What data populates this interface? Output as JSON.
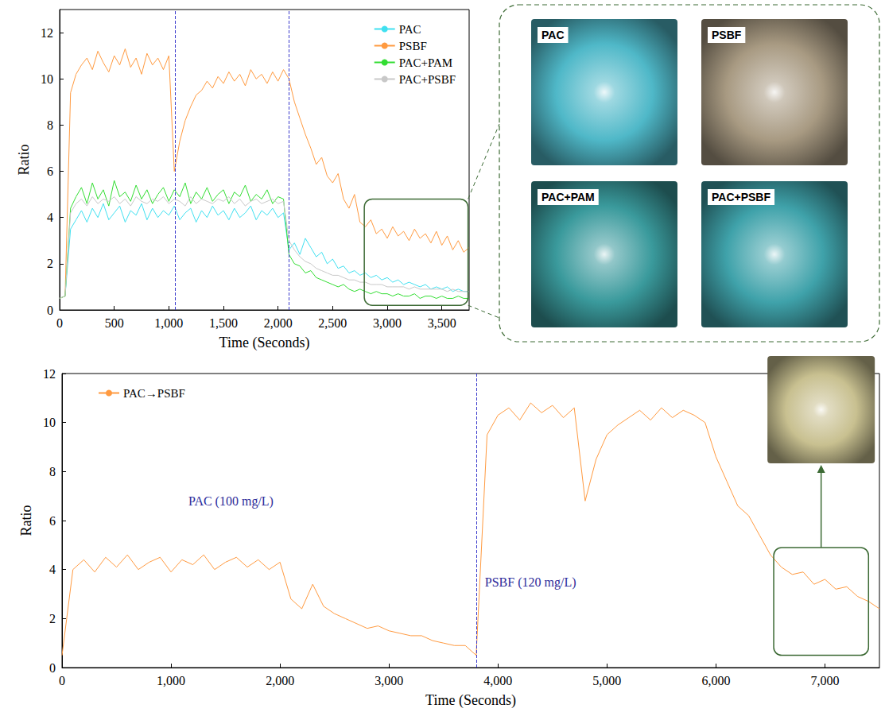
{
  "chart_data": [
    {
      "type": "line",
      "x_label": "Time (Seconds)",
      "y_label": "Ratio",
      "xlim": [
        0,
        3750
      ],
      "xticks": [
        0,
        500,
        1000,
        1500,
        2000,
        2500,
        3000,
        3500
      ],
      "ylim": [
        0,
        13
      ],
      "yticks": [
        0,
        2,
        4,
        6,
        8,
        10,
        12
      ],
      "grid": false,
      "legend": "upper right",
      "vlines": [
        1060,
        2100
      ],
      "highlight": {
        "x": [
          2790,
          3740
        ],
        "y": [
          0.2,
          4.8
        ]
      },
      "x": [
        0,
        50,
        100,
        150,
        200,
        250,
        300,
        350,
        400,
        450,
        500,
        550,
        600,
        650,
        700,
        750,
        800,
        850,
        900,
        950,
        1000,
        1050,
        1100,
        1150,
        1200,
        1250,
        1300,
        1350,
        1400,
        1450,
        1500,
        1550,
        1600,
        1650,
        1700,
        1750,
        1800,
        1850,
        1900,
        1950,
        2000,
        2050,
        2100,
        2150,
        2200,
        2250,
        2300,
        2350,
        2400,
        2450,
        2500,
        2550,
        2600,
        2650,
        2700,
        2750,
        2800,
        2850,
        2900,
        2950,
        3000,
        3050,
        3100,
        3150,
        3200,
        3250,
        3300,
        3350,
        3400,
        3450,
        3500,
        3550,
        3600,
        3650,
        3700,
        3750
      ],
      "series": [
        {
          "name": "PAC",
          "color": "#40e0f0",
          "values": [
            0.5,
            0.6,
            3.5,
            3.9,
            4.3,
            3.8,
            4.4,
            4.0,
            4.6,
            3.9,
            4.2,
            4.5,
            3.8,
            4.3,
            4.1,
            4.6,
            3.9,
            4.4,
            4.0,
            4.3,
            4.1,
            4.5,
            3.9,
            4.2,
            4.4,
            3.8,
            4.3,
            4.0,
            4.5,
            4.1,
            4.3,
            3.9,
            4.4,
            4.0,
            4.2,
            4.5,
            3.9,
            4.3,
            4.1,
            4.4,
            4.0,
            4.2,
            2.6,
            2.9,
            2.4,
            3.1,
            2.7,
            2.3,
            2.5,
            2.0,
            2.2,
            1.8,
            1.9,
            1.6,
            1.7,
            1.5,
            1.6,
            1.4,
            1.5,
            1.3,
            1.4,
            1.2,
            1.3,
            1.1,
            1.2,
            1.1,
            1.0,
            1.1,
            0.9,
            1.0,
            0.9,
            1.0,
            0.8,
            0.9,
            0.8,
            0.8
          ]
        },
        {
          "name": "PSBF",
          "color": "#ff9a40",
          "values": [
            0.5,
            0.6,
            9.4,
            10.2,
            10.6,
            10.9,
            10.4,
            11.2,
            10.7,
            10.3,
            11.0,
            10.6,
            11.3,
            10.5,
            10.9,
            10.2,
            11.1,
            10.6,
            10.9,
            10.4,
            11.0,
            6.0,
            7.3,
            8.2,
            8.8,
            9.3,
            9.5,
            9.9,
            9.6,
            10.1,
            9.8,
            10.3,
            9.9,
            10.2,
            9.7,
            10.4,
            10.0,
            10.2,
            9.8,
            10.3,
            9.9,
            10.4,
            10.0,
            9.0,
            8.3,
            7.6,
            7.0,
            6.3,
            6.6,
            5.8,
            5.5,
            5.9,
            4.8,
            4.4,
            5.0,
            3.8,
            3.6,
            3.9,
            3.3,
            3.5,
            3.1,
            3.6,
            3.2,
            3.4,
            3.0,
            3.5,
            3.1,
            3.3,
            2.9,
            3.4,
            2.8,
            3.2,
            2.6,
            3.0,
            2.5,
            2.7
          ]
        },
        {
          "name": "PAC+PAM",
          "color": "#33dd33",
          "values": [
            0.5,
            0.6,
            4.4,
            4.9,
            5.3,
            4.6,
            5.5,
            4.8,
            5.2,
            4.5,
            5.6,
            4.9,
            5.1,
            4.7,
            5.4,
            4.8,
            5.2,
            4.6,
            5.0,
            5.3,
            4.7,
            5.2,
            4.9,
            5.5,
            4.6,
            5.1,
            4.8,
            5.3,
            4.7,
            5.0,
            5.2,
            4.6,
            5.1,
            4.9,
            5.4,
            4.7,
            5.0,
            4.8,
            5.2,
            4.6,
            4.9,
            4.8,
            2.4,
            2.0,
            1.9,
            1.6,
            1.7,
            1.4,
            1.3,
            1.2,
            1.1,
            1.0,
            1.1,
            0.9,
            0.8,
            0.9,
            0.8,
            0.7,
            0.8,
            0.7,
            0.7,
            0.6,
            0.7,
            0.6,
            0.6,
            0.7,
            0.5,
            0.6,
            0.6,
            0.5,
            0.6,
            0.5,
            0.5,
            0.6,
            0.5,
            0.5
          ]
        },
        {
          "name": "PAC+PSBF",
          "color": "#c8c8c8",
          "values": [
            0.5,
            0.6,
            4.2,
            4.6,
            4.8,
            4.5,
            4.9,
            4.6,
            4.8,
            4.7,
            4.9,
            4.6,
            4.8,
            4.5,
            4.9,
            4.7,
            4.6,
            4.8,
            4.7,
            4.9,
            4.6,
            4.8,
            4.7,
            4.5,
            4.9,
            4.6,
            4.8,
            4.7,
            4.6,
            4.8,
            4.7,
            4.9,
            4.6,
            4.8,
            4.5,
            4.7,
            4.8,
            4.6,
            4.7,
            4.8,
            4.6,
            4.7,
            3.0,
            2.6,
            2.3,
            2.1,
            2.0,
            1.8,
            1.7,
            1.6,
            1.5,
            1.5,
            1.4,
            1.3,
            1.3,
            1.2,
            1.2,
            1.1,
            1.1,
            1.1,
            1.0,
            1.0,
            1.0,
            1.0,
            0.9,
            1.0,
            0.9,
            0.9,
            0.9,
            0.9,
            0.9,
            0.8,
            0.9,
            0.8,
            0.8,
            0.8
          ]
        }
      ]
    },
    {
      "type": "line",
      "x_label": "Time (Seconds)",
      "y_label": "Ratio",
      "xlim": [
        0,
        7500
      ],
      "xticks": [
        0,
        1000,
        2000,
        3000,
        4000,
        5000,
        6000,
        7000
      ],
      "ylim": [
        0,
        12
      ],
      "yticks": [
        0,
        2,
        4,
        6,
        8,
        10,
        12
      ],
      "grid": false,
      "legend": "upper left",
      "vlines": [
        3800
      ],
      "annotations": [
        {
          "text": "PAC (100 mg/L)",
          "x": 1550,
          "y": 6.8
        },
        {
          "text": "PSBF (120 mg/L)",
          "x": 3880,
          "y": 3.5
        }
      ],
      "highlight": {
        "x": [
          6530,
          7400
        ],
        "y": [
          0.5,
          4.9
        ]
      },
      "inset": {
        "color": "#c8c090"
      },
      "x": [
        0,
        100,
        200,
        300,
        400,
        500,
        600,
        700,
        800,
        900,
        1000,
        1100,
        1200,
        1300,
        1400,
        1500,
        1600,
        1700,
        1800,
        1900,
        2000,
        2100,
        2200,
        2300,
        2400,
        2500,
        2600,
        2700,
        2800,
        2900,
        3000,
        3100,
        3200,
        3300,
        3400,
        3500,
        3600,
        3700,
        3800,
        3900,
        4000,
        4100,
        4200,
        4300,
        4400,
        4500,
        4600,
        4700,
        4800,
        4900,
        5000,
        5100,
        5200,
        5300,
        5400,
        5500,
        5600,
        5700,
        5800,
        5900,
        6000,
        6100,
        6200,
        6300,
        6400,
        6500,
        6600,
        6700,
        6800,
        6900,
        7000,
        7100,
        7200,
        7300,
        7400,
        7500
      ],
      "series": [
        {
          "name": "PAC→PSBF",
          "color": "#ff9a40",
          "values": [
            0.5,
            4.0,
            4.4,
            3.9,
            4.5,
            4.1,
            4.6,
            4.0,
            4.3,
            4.5,
            3.9,
            4.4,
            4.2,
            4.6,
            4.0,
            4.3,
            4.5,
            4.1,
            4.4,
            4.0,
            4.3,
            2.8,
            2.4,
            3.4,
            2.5,
            2.2,
            2.0,
            1.8,
            1.6,
            1.7,
            1.5,
            1.4,
            1.3,
            1.3,
            1.1,
            1.0,
            0.9,
            0.9,
            0.5,
            9.5,
            10.3,
            10.6,
            10.1,
            10.8,
            10.4,
            10.7,
            10.2,
            10.6,
            6.8,
            8.5,
            9.5,
            9.9,
            10.2,
            10.5,
            10.1,
            10.6,
            10.2,
            10.5,
            10.3,
            10.0,
            8.6,
            7.6,
            6.6,
            6.2,
            5.4,
            4.6,
            4.1,
            3.8,
            3.9,
            3.4,
            3.6,
            3.2,
            3.3,
            2.9,
            2.7,
            2.4
          ]
        }
      ]
    }
  ],
  "panel": {
    "images": [
      {
        "label": "PAC",
        "color": "#4fb8c8"
      },
      {
        "label": "PSBF",
        "color": "#a89a82"
      },
      {
        "label": "PAC+PAM",
        "color": "#3a9a9c"
      },
      {
        "label": "PAC+PSBF",
        "color": "#3fa2aa"
      }
    ]
  }
}
